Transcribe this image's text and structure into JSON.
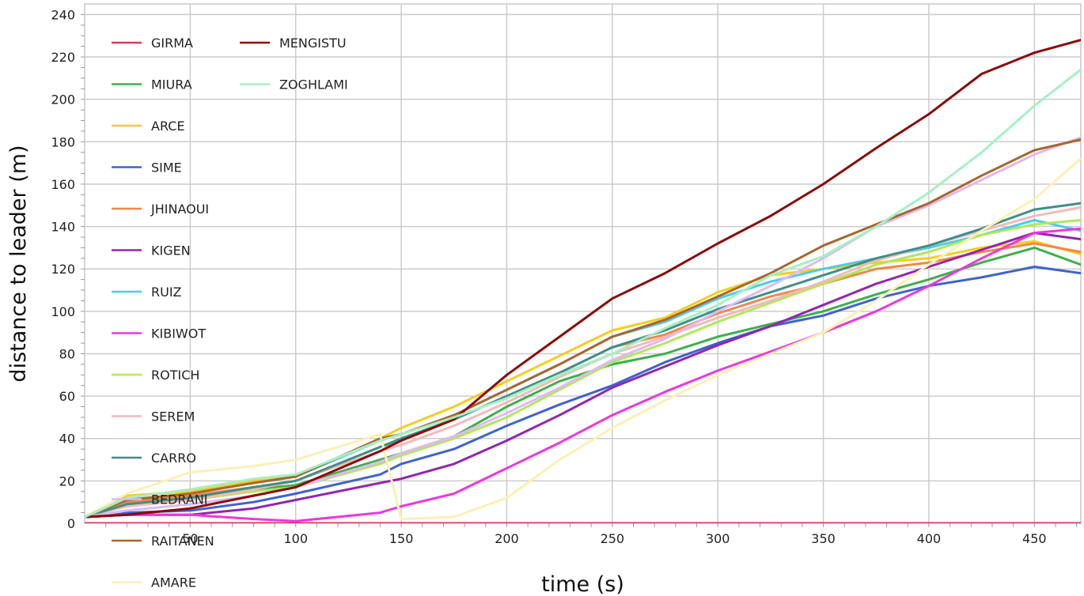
{
  "chart_data": {
    "type": "line",
    "title": "",
    "xlabel": "time (s)",
    "ylabel": "distance to leader (m)",
    "xlim": [
      0,
      472
    ],
    "ylim": [
      0,
      245
    ],
    "xticks": [
      50,
      100,
      150,
      200,
      250,
      300,
      350,
      400,
      450
    ],
    "yticks": [
      0,
      20,
      40,
      60,
      80,
      100,
      120,
      140,
      160,
      180,
      200,
      220,
      240
    ],
    "grid": true,
    "legend_position": "top-left",
    "x": [
      0,
      20,
      50,
      80,
      100,
      140,
      150,
      175,
      200,
      225,
      250,
      275,
      300,
      325,
      350,
      375,
      400,
      425,
      450,
      472
    ],
    "series": [
      {
        "name": "GIRMA",
        "color": "#d63a5e",
        "values": [
          0,
          0,
          0,
          0,
          0,
          0,
          0,
          0,
          0,
          0,
          0,
          0,
          0,
          0,
          0,
          0,
          0,
          0,
          0,
          0
        ]
      },
      {
        "name": "MIURA",
        "color": "#3cb04a",
        "values": [
          3,
          9,
          12,
          16,
          18,
          30,
          33,
          41,
          55,
          67,
          75,
          80,
          88,
          94,
          100,
          108,
          115,
          123,
          130,
          122
        ]
      },
      {
        "name": "ARCE",
        "color": "#f6cd1c",
        "values": [
          3,
          13,
          15,
          20,
          22,
          40,
          45,
          55,
          67,
          79,
          91,
          97,
          109,
          117,
          120,
          123,
          125,
          130,
          133,
          127
        ]
      },
      {
        "name": "SIME",
        "color": "#3e63cf",
        "values": [
          3,
          5,
          6,
          10,
          14,
          23,
          28,
          35,
          46,
          56,
          65,
          76,
          85,
          93,
          98,
          106,
          112,
          116,
          121,
          118
        ]
      },
      {
        "name": "JHINAOUI",
        "color": "#f2874a",
        "values": [
          3,
          10,
          13,
          17,
          20,
          36,
          39,
          49,
          60,
          71,
          83,
          89,
          99,
          107,
          113,
          120,
          123,
          128,
          132,
          128
        ]
      },
      {
        "name": "KIGEN",
        "color": "#9225b0",
        "values": [
          3,
          4,
          4,
          7,
          11,
          19,
          21,
          28,
          39,
          51,
          64,
          74,
          84,
          93,
          103,
          113,
          121,
          129,
          137,
          134
        ]
      },
      {
        "name": "RUIZ",
        "color": "#4dcbe6",
        "values": [
          3,
          11,
          14,
          19,
          22,
          39,
          42,
          51,
          63,
          75,
          88,
          95,
          106,
          114,
          120,
          125,
          130,
          136,
          143,
          138
        ]
      },
      {
        "name": "KIBIWOT",
        "color": "#ef36dd",
        "values": [
          3,
          4,
          4,
          2,
          1,
          5,
          8,
          14,
          26,
          38,
          51,
          62,
          72,
          81,
          90,
          100,
          112,
          125,
          137,
          139
        ]
      },
      {
        "name": "ROTICH",
        "color": "#afe85a",
        "values": [
          3,
          8,
          11,
          15,
          17,
          28,
          32,
          40,
          50,
          63,
          76,
          85,
          95,
          104,
          113,
          122,
          128,
          136,
          141,
          143
        ]
      },
      {
        "name": "SEREM",
        "color": "#f4b9b8",
        "values": [
          3,
          8,
          11,
          16,
          20,
          34,
          37,
          46,
          57,
          69,
          80,
          88,
          97,
          105,
          114,
          124,
          131,
          138,
          145,
          149
        ]
      },
      {
        "name": "CARRO",
        "color": "#3e8f8a",
        "values": [
          3,
          9,
          12,
          17,
          20,
          36,
          40,
          49,
          60,
          71,
          83,
          91,
          101,
          109,
          117,
          125,
          131,
          139,
          148,
          151
        ]
      },
      {
        "name": "BEDRANI",
        "color": "#e0b8f2",
        "values": [
          3,
          6,
          9,
          13,
          17,
          29,
          33,
          41,
          52,
          64,
          77,
          87,
          100,
          112,
          125,
          140,
          150,
          162,
          174,
          182
        ]
      },
      {
        "name": "RAITANEN",
        "color": "#a8662f",
        "values": [
          3,
          11,
          14,
          19,
          22,
          40,
          42,
          51,
          63,
          75,
          88,
          96,
          107,
          118,
          131,
          141,
          151,
          164,
          176,
          181
        ]
      },
      {
        "name": "AMARE",
        "color": "#fbf1b6",
        "values": [
          3,
          14,
          24,
          27,
          30,
          42,
          2,
          3,
          12,
          30,
          45,
          58,
          70,
          80,
          90,
          105,
          122,
          138,
          153,
          172
        ]
      },
      {
        "name": "MENGISTU",
        "color": "#8b0a0a",
        "values": [
          3,
          4,
          7,
          13,
          17,
          34,
          39,
          49,
          70,
          88,
          106,
          118,
          132,
          145,
          160,
          177,
          193,
          212,
          222,
          228
        ]
      },
      {
        "name": "ZOGHLAMI",
        "color": "#a6f0c3",
        "values": [
          3,
          12,
          16,
          21,
          23,
          39,
          42,
          50,
          59,
          70,
          80,
          92,
          103,
          117,
          126,
          140,
          156,
          175,
          197,
          214
        ]
      }
    ]
  }
}
